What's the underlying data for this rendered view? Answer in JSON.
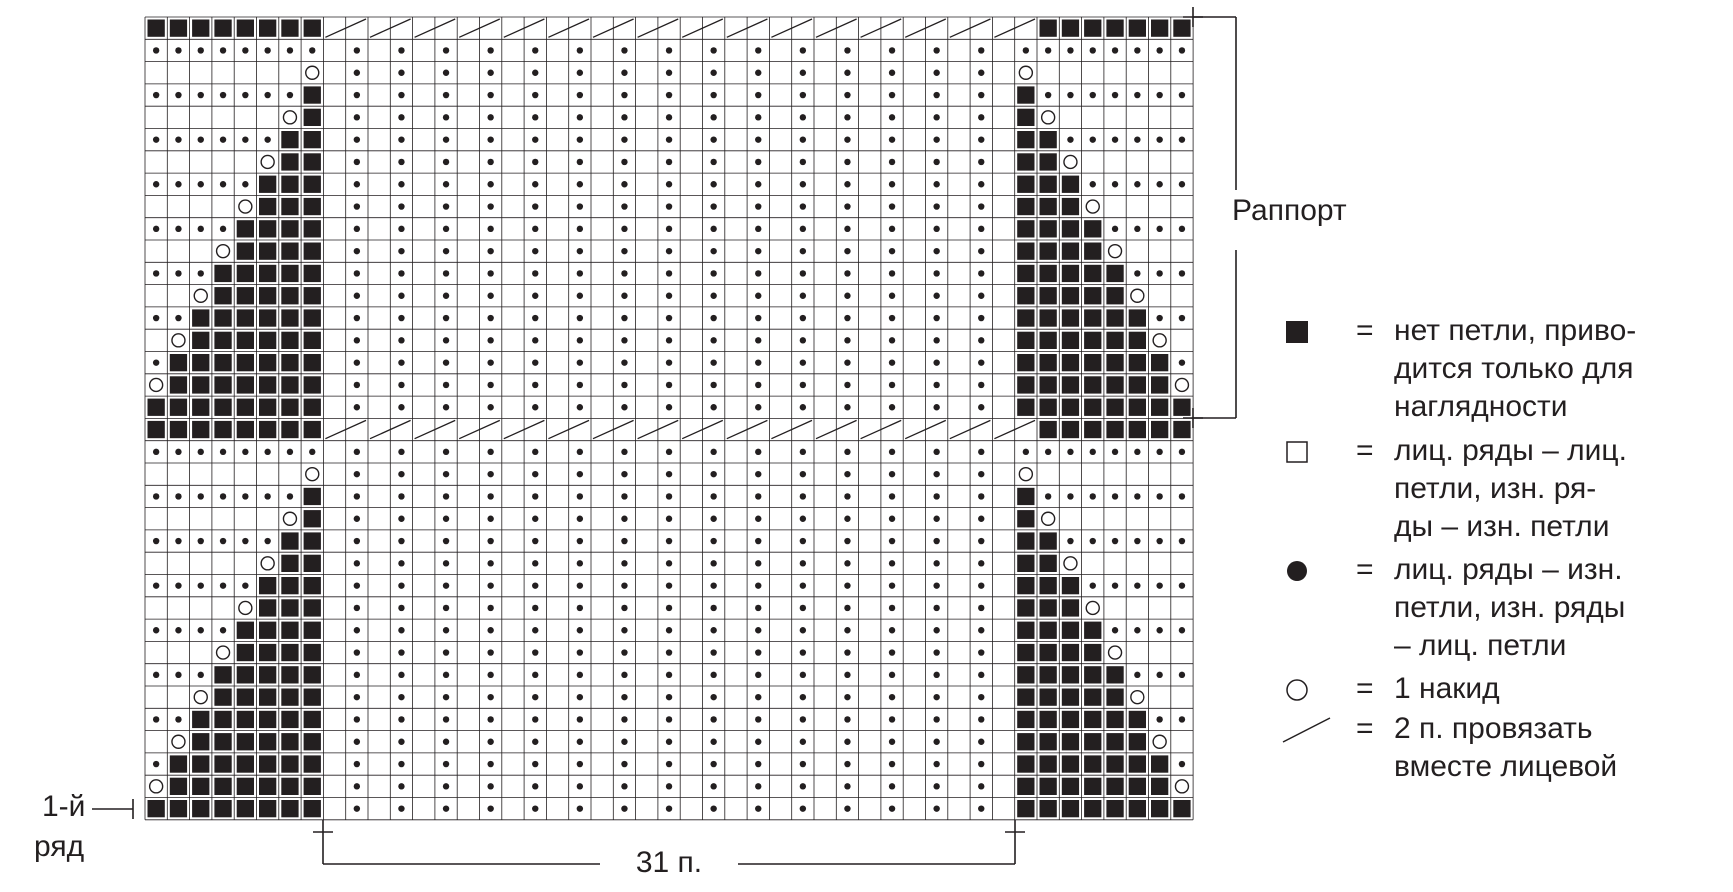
{
  "annotations": {
    "repeat": "Раппорт",
    "first_row": [
      "1-й",
      "ряд"
    ],
    "stitches": "31 п."
  },
  "legend": {
    "separator": "=",
    "items": [
      {
        "symbol": "no-stitch",
        "lines": [
          "нет петли, приво-",
          "дится только для",
          "наглядности"
        ]
      },
      {
        "symbol": "knit",
        "lines": [
          "лиц. ряды – лиц.",
          "петли, изн. ря-",
          "ды – изн. петли"
        ]
      },
      {
        "symbol": "purl",
        "lines": [
          "лиц. ряды – изн.",
          "петли, изн. ряды",
          "– лиц. петли"
        ]
      },
      {
        "symbol": "yarn-over",
        "lines": [
          "1 накид"
        ]
      },
      {
        "symbol": "k2tog",
        "lines": [
          "2 п. провязать",
          "вместе лицевой"
        ]
      }
    ]
  }
}
